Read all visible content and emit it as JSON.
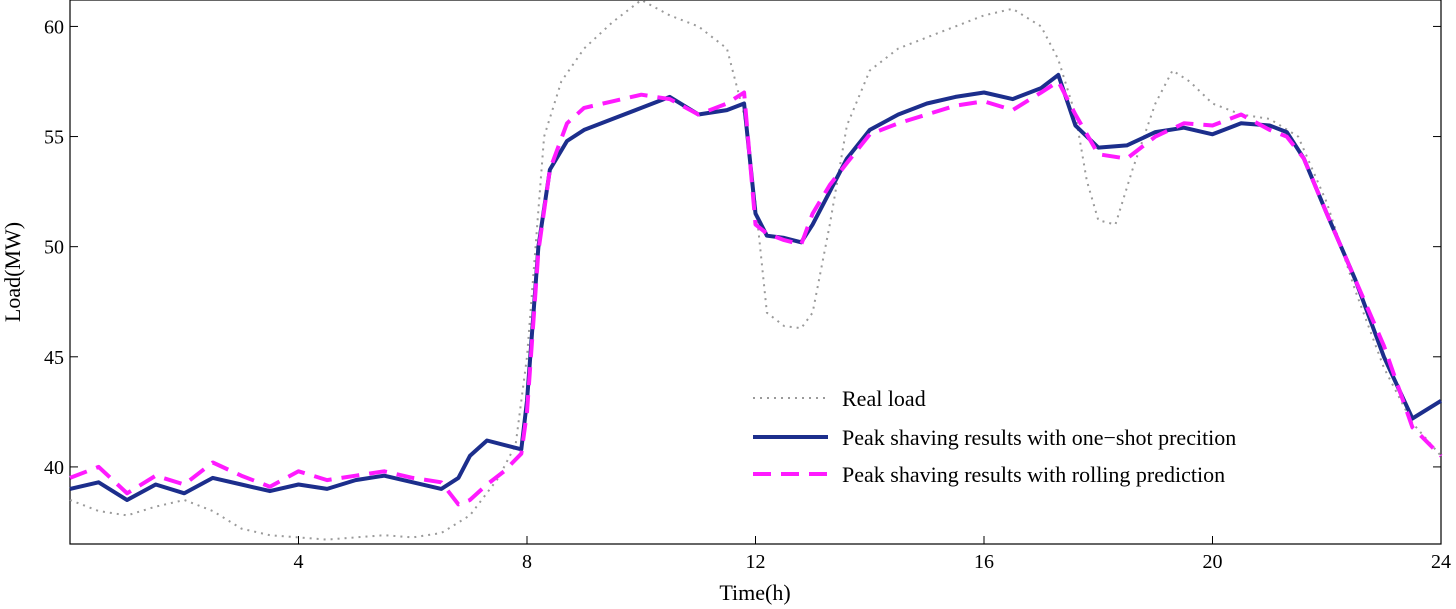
{
  "chart_data": {
    "type": "line",
    "title": "",
    "xlabel": "Time(h)",
    "ylabel": "Load(MW)",
    "xlim": [
      0,
      24
    ],
    "ylim": [
      36.5,
      61.2
    ],
    "xticks": [
      4,
      8,
      12,
      16,
      20,
      24
    ],
    "xtick_labels": [
      "4",
      "8",
      "12",
      "16",
      "20",
      "24"
    ],
    "yticks": [
      40,
      45,
      50,
      55,
      60
    ],
    "ytick_labels": [
      "40",
      "45",
      "50",
      "55",
      "60"
    ],
    "grid": false,
    "legend_position": "lower-right",
    "series": [
      {
        "name": "Real load",
        "style": "dotted",
        "color": "#9a9a9a",
        "x": [
          0,
          0.5,
          1,
          1.5,
          2,
          2.5,
          3,
          3.5,
          4,
          4.5,
          5,
          5.5,
          6,
          6.5,
          7,
          7.5,
          7.8,
          8,
          8.3,
          8.6,
          9,
          9.5,
          10,
          10.5,
          11,
          11.5,
          11.8,
          12,
          12.2,
          12.5,
          12.8,
          13,
          13.3,
          13.6,
          14,
          14.5,
          15,
          15.5,
          16,
          16.5,
          17,
          17.3,
          17.6,
          17.8,
          18,
          18.3,
          18.6,
          19,
          19.3,
          19.6,
          20,
          20.5,
          21,
          21.5,
          22,
          22.5,
          23,
          23.5,
          24
        ],
        "y": [
          38.5,
          38.0,
          37.8,
          38.2,
          38.5,
          38.0,
          37.2,
          36.9,
          36.8,
          36.7,
          36.8,
          36.9,
          36.8,
          37.0,
          37.8,
          39.5,
          41.0,
          45.0,
          55.0,
          57.5,
          59.0,
          60.2,
          61.2,
          60.5,
          60.0,
          59.0,
          56.0,
          52.0,
          47.0,
          46.4,
          46.3,
          47.0,
          51.0,
          55.5,
          58.0,
          59.0,
          59.5,
          60.0,
          60.5,
          60.8,
          60.0,
          58.5,
          56.0,
          53.0,
          51.2,
          51.0,
          53.5,
          56.5,
          58.0,
          57.5,
          56.5,
          56.0,
          55.8,
          55.0,
          52.0,
          48.0,
          44.5,
          42.0,
          40.5
        ]
      },
      {
        "name": "Peak shaving results with one−shot precition",
        "style": "solid",
        "color": "#1c2e8c",
        "x": [
          0,
          0.5,
          1,
          1.5,
          2,
          2.5,
          3,
          3.5,
          4,
          4.5,
          5,
          5.5,
          6,
          6.5,
          6.8,
          7,
          7.3,
          7.6,
          7.9,
          8,
          8.2,
          8.4,
          8.7,
          9,
          9.5,
          10,
          10.5,
          11,
          11.5,
          11.8,
          12,
          12.2,
          12.5,
          12.8,
          13,
          13.3,
          13.6,
          14,
          14.5,
          15,
          15.5,
          16,
          16.5,
          17,
          17.3,
          17.6,
          18,
          18.5,
          19,
          19.5,
          20,
          20.5,
          21,
          21.3,
          21.6,
          22,
          22.5,
          23,
          23.5,
          24
        ],
        "y": [
          39.0,
          39.3,
          38.5,
          39.2,
          38.8,
          39.5,
          39.2,
          38.9,
          39.2,
          39.0,
          39.4,
          39.6,
          39.3,
          39.0,
          39.5,
          40.5,
          41.2,
          41.0,
          40.8,
          43.0,
          50.0,
          53.5,
          54.8,
          55.3,
          55.8,
          56.3,
          56.8,
          56.0,
          56.2,
          56.5,
          51.5,
          50.5,
          50.4,
          50.2,
          51.0,
          52.5,
          54.0,
          55.3,
          56.0,
          56.5,
          56.8,
          57.0,
          56.7,
          57.2,
          57.8,
          55.5,
          54.5,
          54.6,
          55.2,
          55.4,
          55.1,
          55.6,
          55.5,
          55.2,
          54.0,
          51.5,
          48.5,
          45.0,
          42.2,
          43.0
        ]
      },
      {
        "name": "Peak shaving results with rolling prediction",
        "style": "dashed",
        "color": "#ff1aff",
        "x": [
          0,
          0.5,
          1,
          1.5,
          2,
          2.5,
          3,
          3.5,
          4,
          4.5,
          5,
          5.5,
          6,
          6.5,
          6.8,
          7,
          7.3,
          7.6,
          7.9,
          8,
          8.2,
          8.4,
          8.7,
          9,
          9.5,
          10,
          10.5,
          11,
          11.5,
          11.8,
          12,
          12.2,
          12.5,
          12.8,
          13,
          13.3,
          13.6,
          14,
          14.5,
          15,
          15.5,
          16,
          16.5,
          17,
          17.3,
          17.6,
          18,
          18.5,
          19,
          19.5,
          20,
          20.5,
          21,
          21.3,
          21.6,
          22,
          22.5,
          23,
          23.5,
          24
        ],
        "y": [
          39.5,
          40.0,
          38.8,
          39.6,
          39.2,
          40.2,
          39.6,
          39.1,
          39.8,
          39.4,
          39.6,
          39.8,
          39.5,
          39.3,
          38.3,
          38.5,
          39.2,
          39.8,
          40.6,
          42.5,
          49.8,
          53.5,
          55.6,
          56.3,
          56.6,
          56.9,
          56.7,
          56.0,
          56.5,
          57.0,
          51.0,
          50.6,
          50.3,
          50.1,
          51.5,
          52.8,
          53.8,
          55.1,
          55.6,
          56.0,
          56.4,
          56.6,
          56.2,
          57.0,
          57.5,
          56.0,
          54.2,
          54.0,
          55.0,
          55.6,
          55.5,
          56.0,
          55.3,
          55.0,
          54.0,
          51.5,
          48.5,
          45.5,
          41.8,
          40.5
        ]
      }
    ]
  }
}
